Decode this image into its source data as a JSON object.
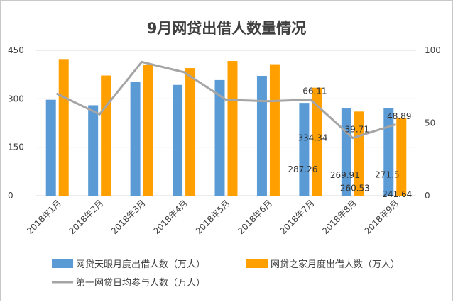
{
  "chart_data": {
    "type": "bar",
    "title": "9月网贷出借人数量情况",
    "categories": [
      "2018年1月",
      "2018年2月",
      "2018年3月",
      "2018年4月",
      "2018年5月",
      "2018年6月",
      "2018年7月",
      "2018年8月",
      "2018年9月"
    ],
    "left_axis": {
      "min": 0,
      "max": 450,
      "ticks": [
        "0",
        "150",
        "300",
        "450"
      ]
    },
    "right_axis": {
      "min": 0,
      "max": 100,
      "ticks": [
        "0",
        "50",
        "100"
      ]
    },
    "series": [
      {
        "name": "网贷天眼月度出借人数（万人）",
        "type": "bar",
        "axis": "left",
        "color": "#5B9BD5",
        "values": [
          297,
          280,
          352,
          343,
          358,
          371,
          287.26,
          269.91,
          271.5
        ],
        "labels": [
          "",
          "",
          "",
          "",
          "",
          "",
          "287.26",
          "269.91",
          "271.5"
        ]
      },
      {
        "name": "网贷之家月度出借人数（万人）",
        "type": "bar",
        "axis": "left",
        "color": "#FFA000",
        "values": [
          423,
          372,
          405,
          395,
          417,
          407,
          334.34,
          260.53,
          241.64
        ],
        "labels": [
          "",
          "",
          "",
          "",
          "",
          "",
          "334.34",
          "260.53",
          "241.64"
        ]
      },
      {
        "name": "第一网贷日均参与人数（万人）",
        "type": "line",
        "axis": "right",
        "color": "#A5A5A5",
        "values": [
          70,
          56,
          92,
          85,
          66,
          65,
          66.11,
          39.71,
          48.89
        ],
        "labels": [
          "",
          "",
          "",
          "",
          "",
          "",
          "66.11",
          "39.71",
          "48.89"
        ]
      }
    ]
  }
}
